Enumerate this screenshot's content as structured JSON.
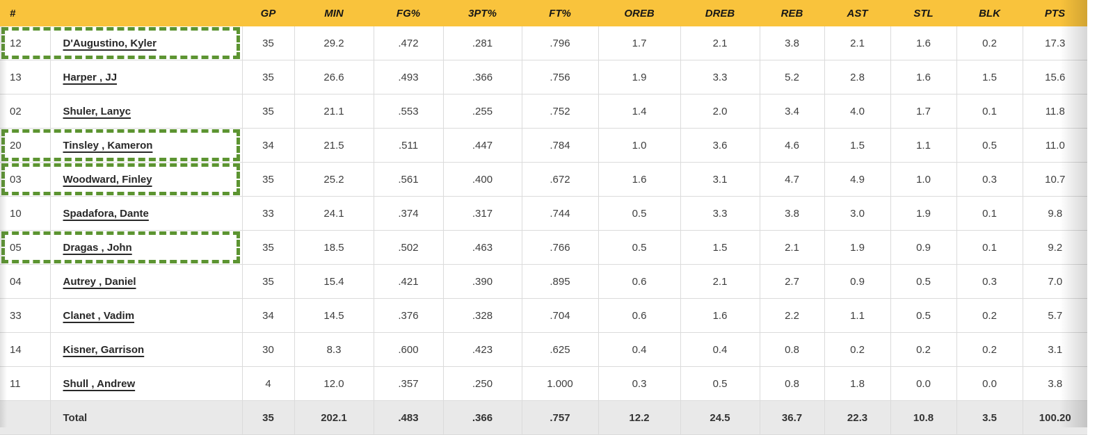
{
  "table": {
    "columns": [
      "#",
      "",
      "GP",
      "MIN",
      "FG%",
      "3PT%",
      "FT%",
      "OREB",
      "DREB",
      "REB",
      "AST",
      "STL",
      "BLK",
      "PTS"
    ],
    "players": [
      {
        "num": "12",
        "name": "D'Augustino, Kyler",
        "highlighted": true,
        "stats": [
          "35",
          "29.2",
          ".472",
          ".281",
          ".796",
          "1.7",
          "2.1",
          "3.8",
          "2.1",
          "1.6",
          "0.2",
          "17.3"
        ]
      },
      {
        "num": "13",
        "name": "Harper , JJ",
        "highlighted": false,
        "stats": [
          "35",
          "26.6",
          ".493",
          ".366",
          ".756",
          "1.9",
          "3.3",
          "5.2",
          "2.8",
          "1.6",
          "1.5",
          "15.6"
        ]
      },
      {
        "num": "02",
        "name": "Shuler, Lanyc",
        "highlighted": false,
        "stats": [
          "35",
          "21.1",
          ".553",
          ".255",
          ".752",
          "1.4",
          "2.0",
          "3.4",
          "4.0",
          "1.7",
          "0.1",
          "11.8"
        ]
      },
      {
        "num": "20",
        "name": "Tinsley , Kameron",
        "highlighted": true,
        "stats": [
          "34",
          "21.5",
          ".511",
          ".447",
          ".784",
          "1.0",
          "3.6",
          "4.6",
          "1.5",
          "1.1",
          "0.5",
          "11.0"
        ]
      },
      {
        "num": "03",
        "name": "Woodward, Finley",
        "highlighted": true,
        "stats": [
          "35",
          "25.2",
          ".561",
          ".400",
          ".672",
          "1.6",
          "3.1",
          "4.7",
          "4.9",
          "1.0",
          "0.3",
          "10.7"
        ]
      },
      {
        "num": "10",
        "name": "Spadafora, Dante",
        "highlighted": false,
        "stats": [
          "33",
          "24.1",
          ".374",
          ".317",
          ".744",
          "0.5",
          "3.3",
          "3.8",
          "3.0",
          "1.9",
          "0.1",
          "9.8"
        ]
      },
      {
        "num": "05",
        "name": "Dragas , John",
        "highlighted": true,
        "stats": [
          "35",
          "18.5",
          ".502",
          ".463",
          ".766",
          "0.5",
          "1.5",
          "2.1",
          "1.9",
          "0.9",
          "0.1",
          "9.2"
        ]
      },
      {
        "num": "04",
        "name": "Autrey , Daniel",
        "highlighted": false,
        "stats": [
          "35",
          "15.4",
          ".421",
          ".390",
          ".895",
          "0.6",
          "2.1",
          "2.7",
          "0.9",
          "0.5",
          "0.3",
          "7.0"
        ]
      },
      {
        "num": "33",
        "name": "Clanet , Vadim",
        "highlighted": false,
        "stats": [
          "34",
          "14.5",
          ".376",
          ".328",
          ".704",
          "0.6",
          "1.6",
          "2.2",
          "1.1",
          "0.5",
          "0.2",
          "5.7"
        ]
      },
      {
        "num": "14",
        "name": "Kisner, Garrison",
        "highlighted": false,
        "stats": [
          "30",
          "8.3",
          ".600",
          ".423",
          ".625",
          "0.4",
          "0.4",
          "0.8",
          "0.2",
          "0.2",
          "0.2",
          "3.1"
        ]
      },
      {
        "num": "11",
        "name": "Shull , Andrew",
        "highlighted": false,
        "stats": [
          "4",
          "12.0",
          ".357",
          ".250",
          "1.000",
          "0.3",
          "0.5",
          "0.8",
          "1.8",
          "0.0",
          "0.0",
          "3.8"
        ]
      }
    ],
    "total": {
      "label": "Total",
      "stats": [
        "35",
        "202.1",
        ".483",
        ".366",
        ".757",
        "12.2",
        "24.5",
        "36.7",
        "22.3",
        "10.8",
        "3.5",
        "100.20"
      ]
    }
  },
  "colors": {
    "header_bg": "#F9C33C",
    "highlight_dash": "#5C9431",
    "total_row_bg": "#E9E9E9",
    "grid_border": "#DBDBDB"
  }
}
